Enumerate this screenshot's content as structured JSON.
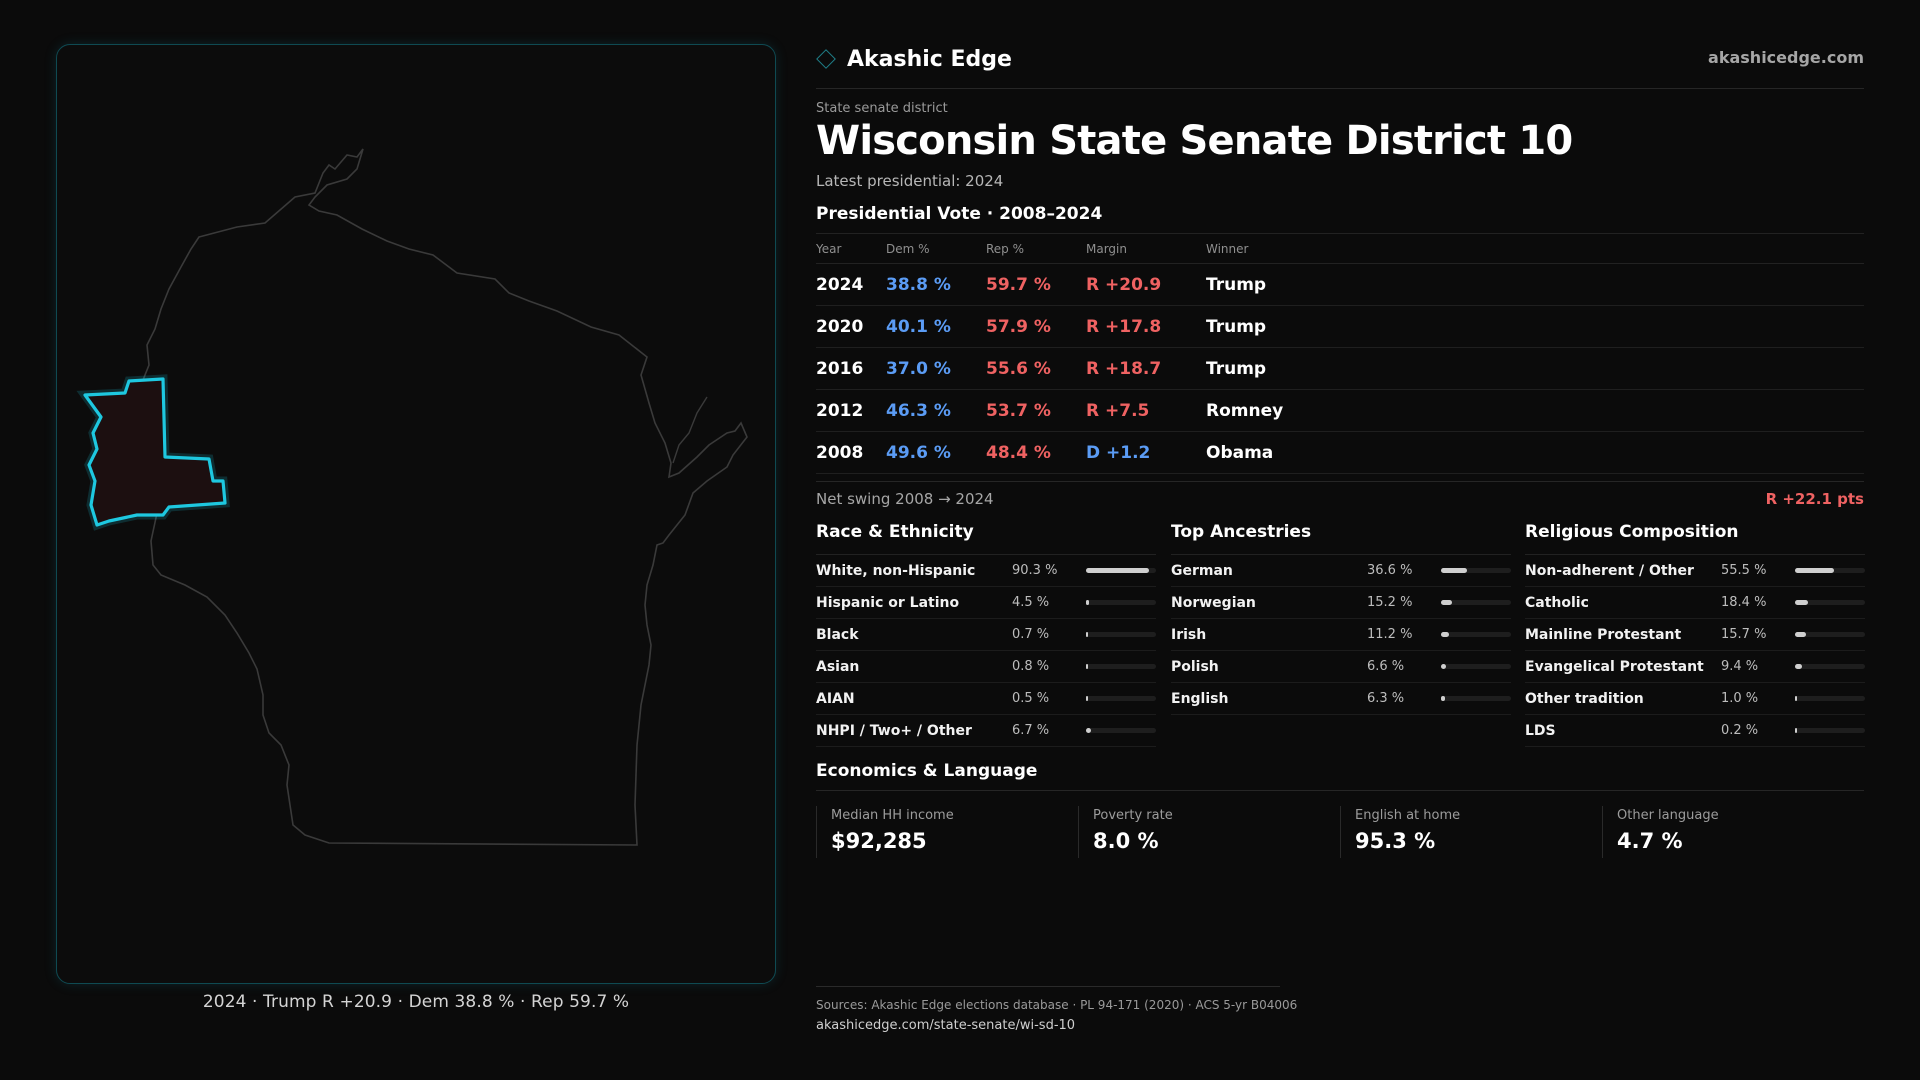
{
  "header": {
    "brand": "Akashic Edge",
    "url": "akashicedge.com"
  },
  "district": {
    "kicker": "State senate district",
    "title": "Wisconsin State Senate District 10",
    "subtitle": "Latest presidential: 2024"
  },
  "map": {
    "caption": "2024 · Trump R +20.9 · Dem 38.8 % · Rep 59.7 %",
    "highlight_color": "#1ec8e0",
    "highlight_fill": "#1c0f10",
    "outline_color": "#3a3a3a"
  },
  "presidential": {
    "title": "Presidential Vote · 2008–2024",
    "headers": {
      "year": "Year",
      "dem": "Dem %",
      "rep": "Rep %",
      "margin": "Margin",
      "winner": "Winner"
    },
    "rows": [
      {
        "year": "2024",
        "dem": "38.8 %",
        "rep": "59.7 %",
        "margin": "R +20.9",
        "margin_party": "rep",
        "winner": "Trump"
      },
      {
        "year": "2020",
        "dem": "40.1 %",
        "rep": "57.9 %",
        "margin": "R +17.8",
        "margin_party": "rep",
        "winner": "Trump"
      },
      {
        "year": "2016",
        "dem": "37.0 %",
        "rep": "55.6 %",
        "margin": "R +18.7",
        "margin_party": "rep",
        "winner": "Trump"
      },
      {
        "year": "2012",
        "dem": "46.3 %",
        "rep": "53.7 %",
        "margin": "R +7.5",
        "margin_party": "rep",
        "winner": "Romney"
      },
      {
        "year": "2008",
        "dem": "49.6 %",
        "rep": "48.4 %",
        "margin": "D +1.2",
        "margin_party": "dem",
        "winner": "Obama"
      }
    ],
    "swing_label": "Net swing 2008 → 2024",
    "swing_value": "R +22.1 pts"
  },
  "race": {
    "title": "Race & Ethnicity",
    "items": [
      {
        "label": "White, non-Hispanic",
        "value": "90.3 %",
        "pct": 90.3
      },
      {
        "label": "Hispanic or Latino",
        "value": "4.5 %",
        "pct": 4.5
      },
      {
        "label": "Black",
        "value": "0.7 %",
        "pct": 0.7
      },
      {
        "label": "Asian",
        "value": "0.8 %",
        "pct": 0.8
      },
      {
        "label": "AIAN",
        "value": "0.5 %",
        "pct": 0.5
      },
      {
        "label": "NHPI / Two+ / Other",
        "value": "6.7 %",
        "pct": 6.7
      }
    ]
  },
  "ancestry": {
    "title": "Top Ancestries",
    "items": [
      {
        "label": "German",
        "value": "36.6 %",
        "pct": 36.6
      },
      {
        "label": "Norwegian",
        "value": "15.2 %",
        "pct": 15.2
      },
      {
        "label": "Irish",
        "value": "11.2 %",
        "pct": 11.2
      },
      {
        "label": "Polish",
        "value": "6.6 %",
        "pct": 6.6
      },
      {
        "label": "English",
        "value": "6.3 %",
        "pct": 6.3
      }
    ]
  },
  "religion": {
    "title": "Religious Composition",
    "items": [
      {
        "label": "Non-adherent / Other",
        "value": "55.5 %",
        "pct": 55.5
      },
      {
        "label": "Catholic",
        "value": "18.4 %",
        "pct": 18.4
      },
      {
        "label": "Mainline Protestant",
        "value": "15.7 %",
        "pct": 15.7
      },
      {
        "label": "Evangelical Protestant",
        "value": "9.4 %",
        "pct": 9.4
      },
      {
        "label": "Other tradition",
        "value": "1.0 %",
        "pct": 1.0
      },
      {
        "label": "LDS",
        "value": "0.2 %",
        "pct": 0.2
      }
    ]
  },
  "economics": {
    "title": "Economics & Language",
    "cards": [
      {
        "label": "Median HH income",
        "value": "$92,285"
      },
      {
        "label": "Poverty rate",
        "value": "8.0 %"
      },
      {
        "label": "English at home",
        "value": "95.3 %"
      },
      {
        "label": "Other language",
        "value": "4.7 %"
      }
    ]
  },
  "footer": {
    "sources": "Sources: Akashic Edge elections database · PL 94-171 (2020) · ACS 5-yr B04006",
    "url": "akashicedge.com/state-senate/wi-sd-10"
  }
}
